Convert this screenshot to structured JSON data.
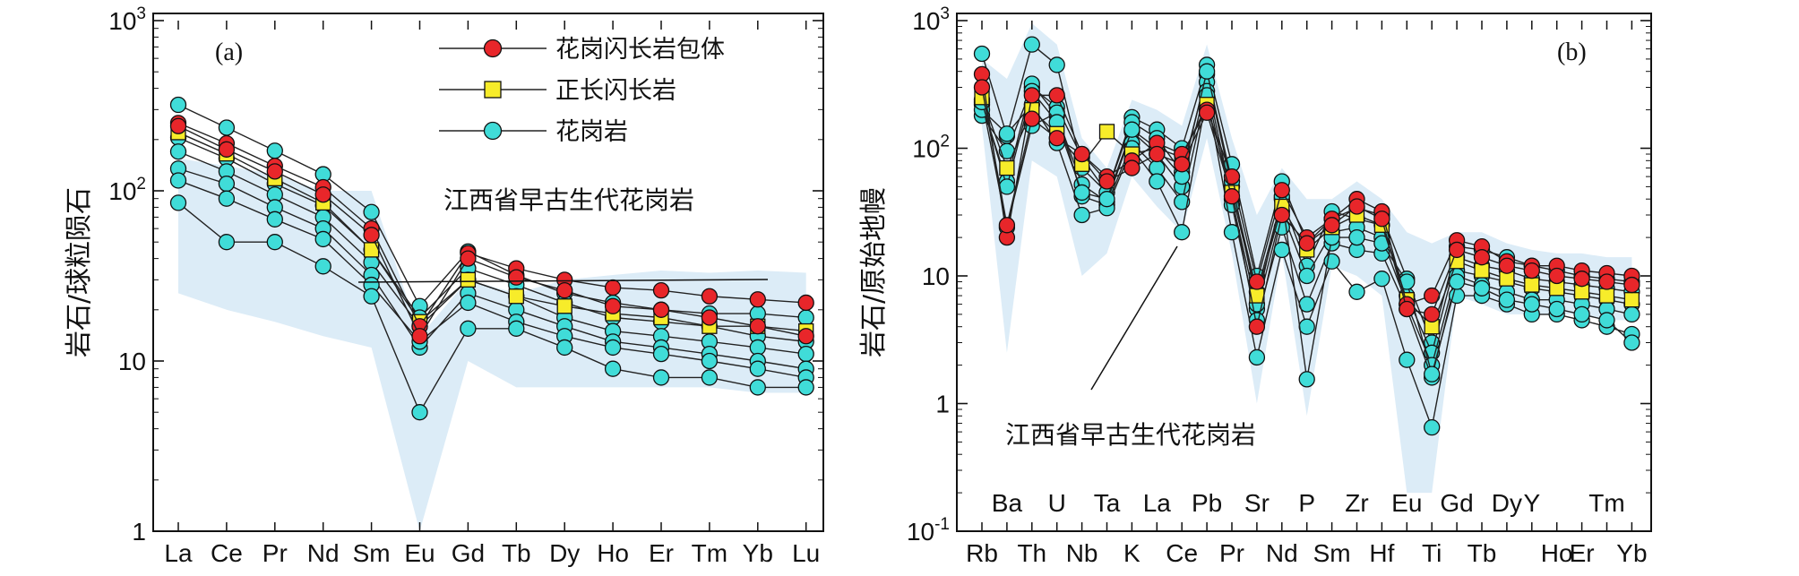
{
  "chart_data": [
    {
      "type": "line",
      "panel": "(a)",
      "ylabel": "岩石/球粒陨石",
      "yscale": "log",
      "ylim": [
        1,
        1000
      ],
      "yticks": [
        {
          "base": "10",
          "exp": "3"
        },
        {
          "base": "10",
          "exp": "2"
        },
        {
          "base": "10",
          "exp": ""
        },
        {
          "base": "1",
          "exp": ""
        }
      ],
      "categories": [
        "La",
        "Ce",
        "Pr",
        "Nd",
        "Sm",
        "Eu",
        "Gd",
        "Tb",
        "Dy",
        "Ho",
        "Er",
        "Tm",
        "Yb",
        "Lu"
      ],
      "field": {
        "label": "江西省早古生代花岗岩",
        "upper": [
          155,
          140,
          125,
          100,
          100,
          14,
          30,
          25,
          30,
          32,
          34,
          33,
          34,
          33
        ],
        "lower": [
          25,
          20,
          17,
          14,
          12,
          1,
          10,
          7,
          7,
          7,
          7,
          7,
          6.5,
          6.5
        ]
      },
      "legend": [
        {
          "label": "花岗闪长岩包体",
          "marker": "circle",
          "color": "#e8262a"
        },
        {
          "label": "正长闪长岩",
          "marker": "square",
          "color": "#f7ec2a"
        },
        {
          "label": "花岗岩",
          "marker": "circle",
          "color": "#40dcd8"
        }
      ],
      "series": [
        {
          "name": "花岗闪长岩包体",
          "values": [
            250,
            190,
            140,
            105,
            60,
            16,
            43,
            35,
            30,
            27,
            26,
            24,
            23,
            22
          ]
        },
        {
          "name": "花岗闪长岩包体",
          "values": [
            240,
            175,
            130,
            95,
            55,
            14,
            40,
            31,
            26,
            21,
            20,
            18,
            16,
            14
          ]
        },
        {
          "name": "正长闪长岩",
          "values": [
            220,
            165,
            118,
            85,
            45,
            17,
            30,
            24,
            21,
            19,
            18,
            16,
            16,
            15
          ]
        },
        {
          "name": "花岗岩",
          "values": [
            320,
            235,
            172,
            125,
            75,
            21,
            44,
            32,
            25,
            22,
            20,
            19,
            19,
            18
          ]
        },
        {
          "name": "花岗岩",
          "values": [
            205,
            155,
            110,
            82,
            45,
            18,
            35,
            28,
            22,
            18,
            17,
            16,
            14,
            13
          ]
        },
        {
          "name": "花岗岩",
          "values": [
            170,
            130,
            95,
            70,
            38,
            16,
            30,
            24,
            18,
            15,
            14,
            13,
            12,
            11
          ]
        },
        {
          "name": "花岗岩",
          "values": [
            135,
            110,
            80,
            60,
            32,
            12,
            25,
            20,
            16,
            13,
            12,
            11,
            10,
            9
          ]
        },
        {
          "name": "花岗岩",
          "values": [
            115,
            90,
            68,
            52,
            28,
            13,
            22,
            17,
            14,
            12,
            11,
            10,
            9,
            8
          ]
        },
        {
          "name": "花岗岩",
          "values": [
            85,
            50,
            50,
            36,
            24,
            5,
            15.5,
            15.5,
            12,
            9,
            8,
            8,
            7,
            7
          ]
        }
      ]
    },
    {
      "type": "line",
      "panel": "(b)",
      "ylabel": "岩石/原始地幔",
      "yscale": "log",
      "ylim": [
        0.1,
        1000
      ],
      "yticks": [
        {
          "base": "10",
          "exp": "3"
        },
        {
          "base": "10",
          "exp": "2"
        },
        {
          "base": "10",
          "exp": ""
        },
        {
          "base": "1",
          "exp": ""
        },
        {
          "base": "10",
          "exp": "-1"
        }
      ],
      "categories": [
        "Rb",
        "Ba",
        "Th",
        "U",
        "Nb",
        "Ta",
        "K",
        "La",
        "Ce",
        "Pb",
        "Pr",
        "Sr",
        "Nd",
        "P",
        "Sm",
        "Zr",
        "Hf",
        "Eu",
        "Ti",
        "Gd",
        "Tb",
        "Dy",
        "Y",
        "Ho",
        "Er",
        "Tm",
        "Yb"
      ],
      "categories_top": [
        "Ba",
        "U",
        "Ta",
        "La",
        "Pb",
        "Sr",
        "P",
        "Zr",
        "Eu",
        "Gd",
        "Dy",
        "Y",
        "Tm"
      ],
      "categories_bottom": [
        "Rb",
        "Th",
        "Nb",
        "K",
        "Ce",
        "Pr",
        "Nd",
        "Sm",
        "Hf",
        "Ti",
        "Tb",
        "Ho",
        "Er",
        "Yb"
      ],
      "field": {
        "label": "江西省早古生代花岗岩",
        "upper": [
          500,
          350,
          950,
          650,
          120,
          70,
          240,
          200,
          150,
          650,
          120,
          30,
          70,
          40,
          40,
          55,
          40,
          22,
          18,
          22,
          22,
          18,
          16,
          15,
          15,
          14,
          14
        ],
        "lower": [
          150,
          2.5,
          80,
          60,
          10,
          15,
          60,
          35,
          22,
          120,
          15,
          1,
          15,
          0.8,
          12,
          10,
          7,
          0.2,
          0.2,
          7,
          6,
          5,
          5,
          5,
          5,
          4.5,
          4.5
        ]
      },
      "series": [
        {
          "name": "花岗闪长岩包体",
          "values": [
            380,
            20,
            260,
            260,
            90,
            60,
            80,
            110,
            90,
            200,
            60,
            9,
            47,
            20,
            28,
            40,
            32,
            6,
            7,
            19,
            17,
            13,
            12,
            12,
            11,
            10.5,
            10
          ]
        },
        {
          "name": "花岗闪长岩包体",
          "values": [
            300,
            25,
            170,
            120,
            90,
            55,
            70,
            90,
            75,
            190,
            42,
            4,
            30,
            18,
            25,
            35,
            28,
            5.5,
            5,
            16,
            14,
            12,
            11,
            10,
            9.5,
            9,
            8.5
          ]
        },
        {
          "name": "正长闪长岩",
          "values": [
            250,
            70,
            200,
            130,
            75,
            135,
            90,
            100,
            85,
            220,
            45,
            7,
            35,
            16,
            24,
            30,
            25,
            6.5,
            4,
            13,
            11,
            9.5,
            8.5,
            8,
            7.5,
            7,
            6.5
          ]
        },
        {
          "name": "花岗岩",
          "values": [
            550,
            125,
            650,
            450,
            70,
            45,
            175,
            140,
            100,
            450,
            75,
            10,
            55,
            18,
            28,
            34,
            30,
            9.5,
            3,
            17,
            16,
            14,
            12,
            11,
            10,
            9.5,
            9
          ]
        },
        {
          "name": "花岗岩",
          "values": [
            180,
            95,
            300,
            210,
            85,
            45,
            160,
            120,
            65,
            380,
            50,
            7.5,
            40,
            12,
            32,
            28,
            25,
            7,
            2.5,
            14,
            12,
            11,
            9.5,
            9,
            8.5,
            8,
            7.5
          ]
        },
        {
          "name": "花岗岩",
          "values": [
            220,
            55,
            320,
            180,
            52,
            38,
            135,
            90,
            50,
            330,
            40,
            5.5,
            32,
            10,
            22,
            24,
            20,
            6,
            2,
            11,
            10,
            9,
            8,
            7.5,
            7,
            6.5,
            6
          ]
        },
        {
          "name": "花岗岩",
          "values": [
            240,
            24,
            150,
            190,
            42,
            36,
            110,
            70,
            38,
            280,
            36,
            4.5,
            24,
            6,
            18,
            16,
            15,
            5.5,
            1.6,
            10,
            8.5,
            7.5,
            6.5,
            6.5,
            6,
            5.5,
            5
          ]
        },
        {
          "name": "花岗岩",
          "values": [
            200,
            130,
            220,
            110,
            30,
            34,
            100,
            55,
            22,
            260,
            22,
            2.3,
            16,
            4,
            13,
            7.5,
            9.5,
            2.2,
            0.65,
            7,
            7,
            6,
            5,
            5,
            4.5,
            4,
            3.5
          ]
        },
        {
          "name": "花岗岩",
          "values": [
            230,
            50,
            280,
            160,
            45,
            40,
            140,
            100,
            60,
            400,
            55,
            6,
            42,
            1.55,
            20,
            20,
            18,
            9,
            1.7,
            9,
            8,
            6.5,
            6,
            5.5,
            5,
            4.5,
            3
          ]
        }
      ]
    }
  ]
}
